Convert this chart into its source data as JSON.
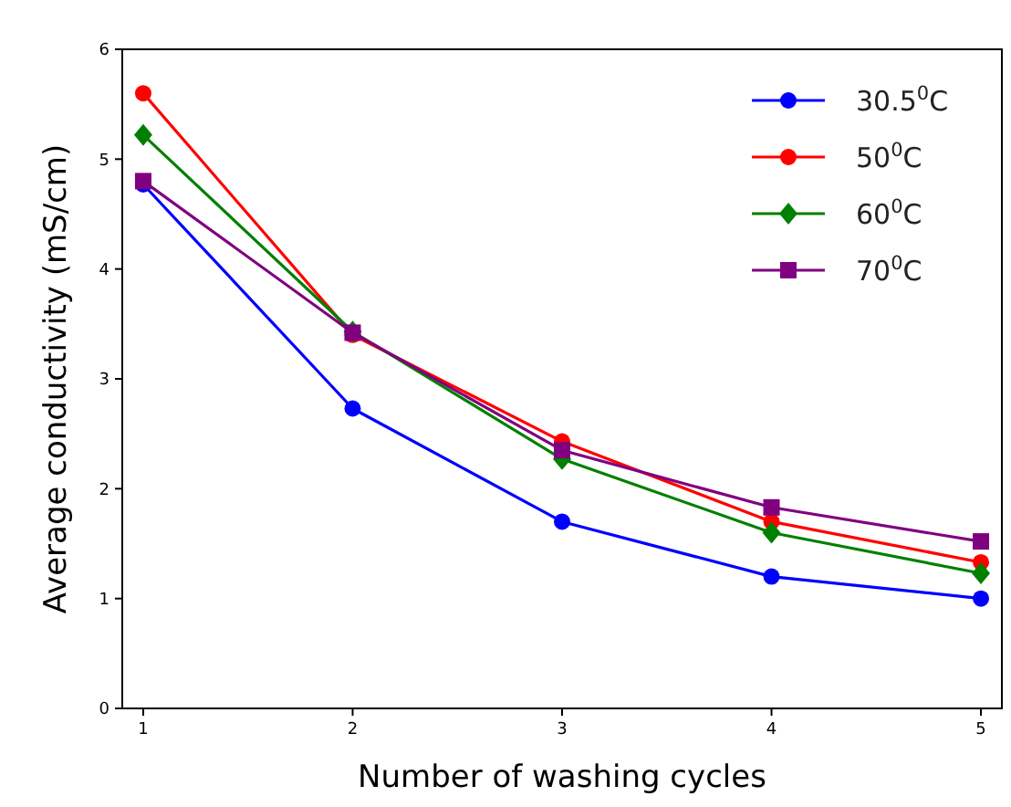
{
  "chart_data": {
    "type": "line",
    "xlabel": "Number of washing cycles",
    "ylabel": "Average conductivity (mS/cm)",
    "x": [
      1,
      2,
      3,
      4,
      5
    ],
    "xlim": [
      0.9,
      5.1
    ],
    "xticks": [
      1,
      2,
      3,
      4,
      5
    ],
    "ylim": [
      0,
      6
    ],
    "yticks": [
      0,
      1,
      2,
      3,
      4,
      5,
      6
    ],
    "grid": false,
    "legend": "top right",
    "line_style": "solid",
    "series": [
      {
        "name": "30.5$^{0}$C",
        "color": "#0000ff",
        "marker": "circle",
        "values": [
          4.77,
          2.73,
          1.7,
          1.2,
          1.0
        ]
      },
      {
        "name": "50$^{0}$C",
        "color": "#ff0000",
        "marker": "circle",
        "values": [
          5.6,
          3.4,
          2.43,
          1.7,
          1.33
        ]
      },
      {
        "name": "60$^{0}$C",
        "color": "#008000",
        "marker": "diamond",
        "values": [
          5.22,
          3.43,
          2.27,
          1.6,
          1.23
        ]
      },
      {
        "name": "70$^{0}$C",
        "color": "#800080",
        "marker": "square",
        "values": [
          4.8,
          3.42,
          2.35,
          1.83,
          1.52
        ]
      }
    ]
  }
}
